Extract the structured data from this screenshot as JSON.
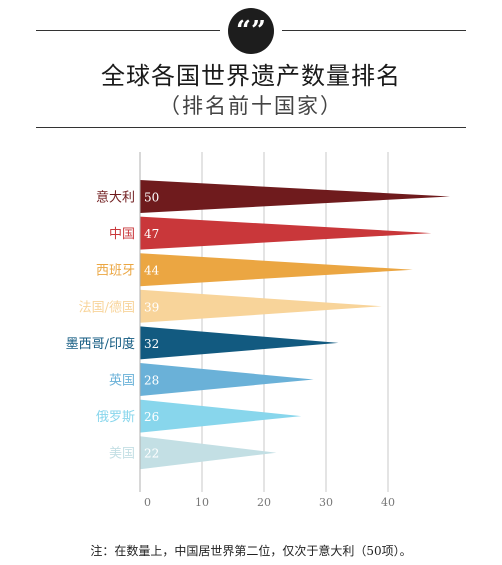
{
  "header": {
    "quote_glyph": "“”",
    "title": "全球各国世界遗产数量排名",
    "subtitle": "（排名前十国家）"
  },
  "footnote": "注：在数量上，中国居世界第二位，仅次于意大利（50项）。",
  "chart_data": {
    "type": "bar",
    "orientation": "horizontal",
    "bar_shape": "triangle",
    "title": "全球各国世界遗产数量排名",
    "subtitle": "（排名前十国家）",
    "xlabel": "",
    "ylabel": "",
    "xlim": [
      0,
      50
    ],
    "x_ticks": [
      0,
      10,
      20,
      30,
      40
    ],
    "grid": true,
    "categories": [
      "意大利",
      "中国",
      "西班牙",
      "法国/德国",
      "墨西哥/印度",
      "英国",
      "俄罗斯",
      "美国"
    ],
    "values": [
      50,
      47,
      44,
      39,
      32,
      28,
      26,
      22
    ],
    "value_labels": [
      "50",
      "47",
      "44",
      "39",
      "32",
      "28",
      "26",
      "22"
    ],
    "colors": [
      "#6f1b1d",
      "#c9373a",
      "#eba642",
      "#f8d49a",
      "#125a80",
      "#6ab1d8",
      "#88d6ec",
      "#c3dfe4"
    ]
  }
}
